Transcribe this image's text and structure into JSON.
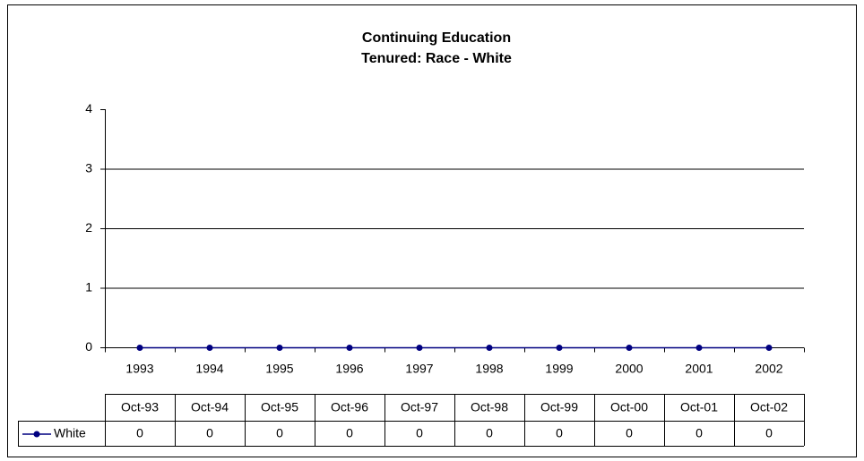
{
  "chart_data": {
    "type": "line",
    "title": "Continuing Education",
    "subtitle": "Tenured: Race - White",
    "categories": [
      "1993",
      "1994",
      "1995",
      "1996",
      "1997",
      "1998",
      "1999",
      "2000",
      "2001",
      "2002"
    ],
    "table_headers": [
      "Oct-93",
      "Oct-94",
      "Oct-95",
      "Oct-96",
      "Oct-97",
      "Oct-98",
      "Oct-99",
      "Oct-00",
      "Oct-01",
      "Oct-02"
    ],
    "series": [
      {
        "name": "White",
        "color": "#000080",
        "values": [
          0,
          0,
          0,
          0,
          0,
          0,
          0,
          0,
          0,
          0
        ]
      }
    ],
    "ylim": [
      0,
      4
    ],
    "yticks": [
      0,
      1,
      2,
      3,
      4
    ],
    "grid": true
  }
}
